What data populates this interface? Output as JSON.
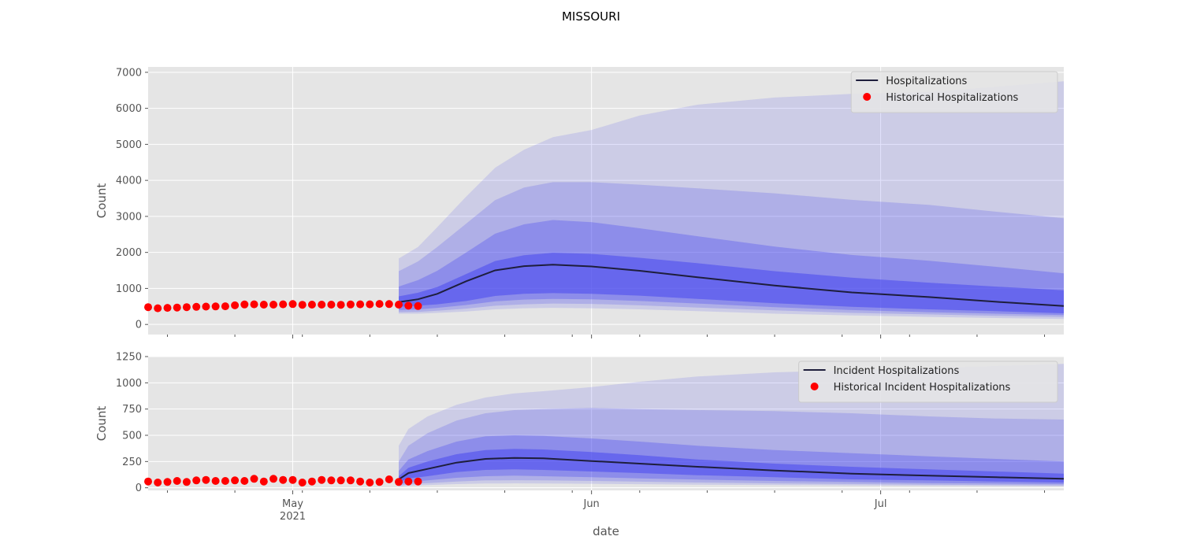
{
  "figure": {
    "title": "MISSOURI",
    "xlabel": "date",
    "x_ticks_major": [
      {
        "date": "2021-05-01",
        "label": "May",
        "sublabel": "2021"
      },
      {
        "date": "2021-06-01",
        "label": "Jun",
        "sublabel": ""
      },
      {
        "date": "2021-07-01",
        "label": "Jul",
        "sublabel": ""
      }
    ],
    "xlim": [
      "2021-04-16",
      "2021-07-20"
    ],
    "colors": {
      "plot_background": "#e5e5e5",
      "grid": "#ffffff",
      "band": "#4848ee",
      "median_line": "#1e1e3c",
      "historical_points": "#ff0000"
    }
  },
  "chart_data": [
    {
      "type": "area",
      "panel": "top",
      "ylabel": "Count",
      "ylim": [
        -280,
        7150
      ],
      "yticks": [
        0,
        1000,
        2000,
        3000,
        4000,
        5000,
        6000,
        7000
      ],
      "grid": true,
      "legend_position": "upper right",
      "legend": [
        {
          "label": "Hospitalizations",
          "marker": "line"
        },
        {
          "label": "Historical Hospitalizations",
          "marker": "dot"
        }
      ],
      "historical": {
        "name": "Historical Hospitalizations",
        "start_date": "2021-04-16",
        "values": [
          480,
          450,
          460,
          470,
          480,
          490,
          495,
          500,
          505,
          530,
          555,
          560,
          550,
          550,
          560,
          565,
          545,
          550,
          550,
          550,
          545,
          555,
          560,
          560,
          570,
          565,
          550,
          520,
          510
        ]
      },
      "forecast": {
        "name": "Hospitalizations",
        "dates": [
          "2021-05-12",
          "2021-05-14",
          "2021-05-16",
          "2021-05-19",
          "2021-05-22",
          "2021-05-25",
          "2021-05-28",
          "2021-06-01",
          "2021-06-06",
          "2021-06-12",
          "2021-06-20",
          "2021-06-28",
          "2021-07-06",
          "2021-07-13",
          "2021-07-20"
        ],
        "median": [
          620,
          700,
          850,
          1200,
          1500,
          1620,
          1660,
          1610,
          1490,
          1310,
          1080,
          890,
          760,
          630,
          510
        ],
        "bands": [
          {
            "lower": [
              490,
              520,
              560,
              650,
              790,
              850,
              870,
              850,
              800,
              710,
              590,
              490,
              420,
              370,
              310
            ],
            "upper": [
              780,
              880,
              1040,
              1400,
              1760,
              1920,
              1990,
              1960,
              1850,
              1700,
              1480,
              1300,
              1160,
              1050,
              950
            ]
          },
          {
            "lower": [
              400,
              420,
              460,
              540,
              640,
              690,
              710,
              700,
              650,
              580,
              480,
              400,
              340,
              300,
              260
            ],
            "upper": [
              1050,
              1230,
              1490,
              2000,
              2520,
              2780,
              2900,
              2840,
              2670,
              2450,
              2160,
              1930,
              1770,
              1600,
              1420
            ]
          },
          {
            "lower": [
              340,
              350,
              380,
              440,
              520,
              560,
              580,
              570,
              530,
              470,
              390,
              320,
              280,
              240,
              210
            ],
            "upper": [
              1480,
              1750,
              2150,
              2800,
              3450,
              3800,
              3950,
              3950,
              3880,
              3780,
              3640,
              3460,
              3320,
              3130,
              2950
            ]
          },
          {
            "lower": [
              300,
              300,
              320,
              360,
              420,
              450,
              460,
              450,
              420,
              370,
              300,
              250,
              210,
              180,
              150
            ],
            "upper": [
              1830,
              2150,
              2700,
              3550,
              4350,
              4850,
              5200,
              5400,
              5800,
              6100,
              6300,
              6400,
              6450,
              6600,
              6750
            ]
          }
        ]
      }
    },
    {
      "type": "area",
      "panel": "bottom",
      "ylabel": "Count",
      "ylim": [
        -25,
        1250
      ],
      "yticks": [
        0,
        250,
        500,
        750,
        1000,
        1250
      ],
      "grid": true,
      "legend_position": "upper right",
      "legend": [
        {
          "label": "Incident Hospitalizations",
          "marker": "line"
        },
        {
          "label": "Historical Incident Hospitalizations",
          "marker": "dot"
        }
      ],
      "historical": {
        "name": "Historical Incident Hospitalizations",
        "start_date": "2021-04-16",
        "values": [
          60,
          50,
          55,
          65,
          55,
          70,
          75,
          65,
          65,
          70,
          65,
          85,
          60,
          85,
          75,
          75,
          50,
          60,
          75,
          70,
          70,
          70,
          60,
          50,
          55,
          80,
          55,
          60,
          60
        ]
      },
      "forecast": {
        "name": "Incident Hospitalizations",
        "dates": [
          "2021-05-12",
          "2021-05-13",
          "2021-05-15",
          "2021-05-18",
          "2021-05-21",
          "2021-05-24",
          "2021-05-27",
          "2021-06-01",
          "2021-06-06",
          "2021-06-12",
          "2021-06-20",
          "2021-06-28",
          "2021-07-06",
          "2021-07-13",
          "2021-07-20"
        ],
        "median": [
          80,
          140,
          180,
          240,
          275,
          285,
          280,
          255,
          230,
          200,
          165,
          135,
          115,
          100,
          85
        ],
        "bands": [
          {
            "lower": [
              50,
              90,
              110,
              150,
              170,
              175,
              170,
              155,
              140,
              120,
              100,
              80,
              70,
              60,
              50
            ],
            "upper": [
              110,
              190,
              250,
              320,
              360,
              370,
              365,
              340,
              310,
              270,
              230,
              200,
              175,
              155,
              135
            ]
          },
          {
            "lower": [
              30,
              55,
              70,
              95,
              110,
              115,
              110,
              100,
              90,
              78,
              65,
              55,
              45,
              40,
              35
            ],
            "upper": [
              160,
              270,
              350,
              440,
              490,
              500,
              495,
              470,
              440,
              400,
              360,
              330,
              300,
              275,
              250
            ]
          },
          {
            "lower": [
              20,
              35,
              45,
              60,
              70,
              72,
              70,
              65,
              58,
              50,
              42,
              36,
              30,
              26,
              22
            ],
            "upper": [
              250,
              400,
              520,
              640,
              710,
              740,
              750,
              760,
              750,
              740,
              730,
              710,
              680,
              660,
              650
            ]
          },
          {
            "lower": [
              10,
              20,
              25,
              35,
              40,
              42,
              40,
              38,
              34,
              30,
              25,
              22,
              18,
              16,
              14
            ],
            "upper": [
              400,
              560,
              680,
              790,
              860,
              900,
              920,
              960,
              1010,
              1060,
              1100,
              1120,
              1140,
              1160,
              1180
            ]
          }
        ]
      }
    }
  ]
}
